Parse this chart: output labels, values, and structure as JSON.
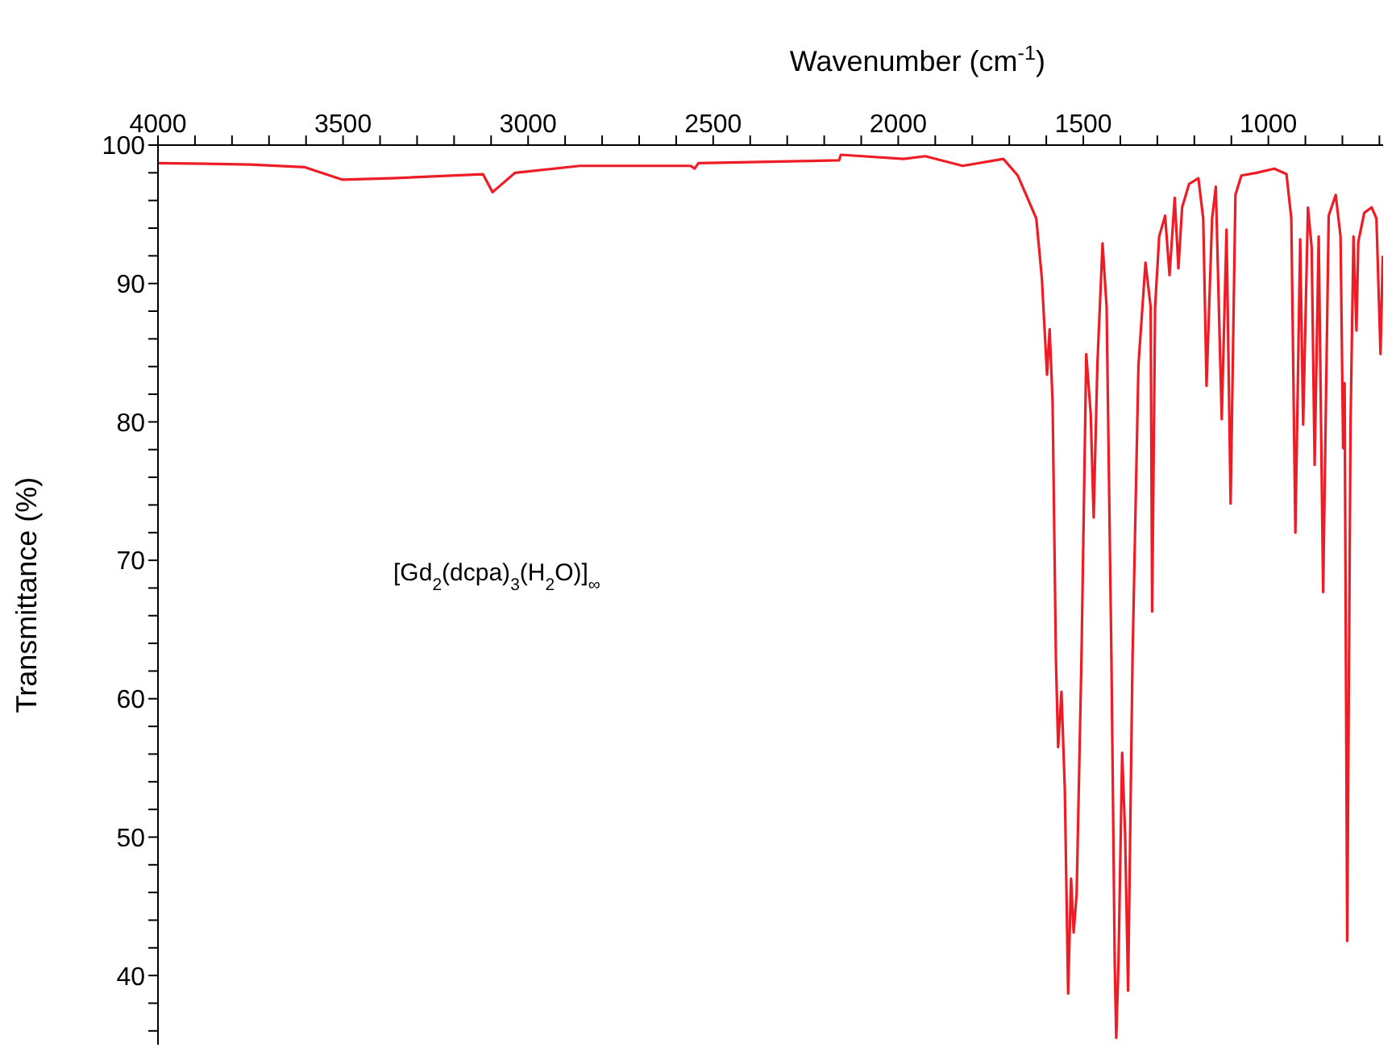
{
  "chart_data": {
    "type": "line",
    "xlabel": "Wavenumber (cm$^{-1}$)",
    "ylabel": "Transmittance (%)",
    "annotations": [
      "[Gd$_{2}$(dcpa)$_{3}$(H$_{2}$O)]$_{∞}$"
    ],
    "xlim": [
      4000,
      690
    ],
    "ylim": [
      35,
      100
    ],
    "xticks": [
      4000,
      {
        "value": 3900,
        "label": null
      },
      {
        "value": 3800,
        "label": null
      },
      {
        "value": 3700,
        "label": null
      },
      {
        "value": 3600,
        "label": null
      },
      3500,
      {
        "value": 3400,
        "label": null
      },
      {
        "value": 3300,
        "label": null
      },
      {
        "value": 3200,
        "label": null
      },
      {
        "value": 3100,
        "label": null
      },
      3000,
      {
        "value": 2900,
        "label": null
      },
      {
        "value": 2800,
        "label": null
      },
      {
        "value": 2700,
        "label": null
      },
      {
        "value": 2600,
        "label": null
      },
      2500,
      {
        "value": 2400,
        "label": null
      },
      {
        "value": 2300,
        "label": null
      },
      {
        "value": 2200,
        "label": null
      },
      {
        "value": 2100,
        "label": null
      },
      2000,
      {
        "value": 1900,
        "label": null
      },
      {
        "value": 1800,
        "label": null
      },
      {
        "value": 1700,
        "label": null
      },
      {
        "value": 1600,
        "label": null
      },
      1500,
      {
        "value": 1400,
        "label": null
      },
      {
        "value": 1300,
        "label": null
      },
      {
        "value": 1200,
        "label": null
      },
      {
        "value": 1100,
        "label": null
      },
      1000,
      {
        "value": 900,
        "label": null
      },
      {
        "value": 800,
        "label": null
      },
      {
        "value": 700,
        "label": null
      }
    ],
    "yticks": [
      {
        "value": 36,
        "label": null
      },
      {
        "value": 38,
        "label": null
      },
      40,
      {
        "value": 42,
        "label": null
      },
      {
        "value": 44,
        "label": null
      },
      {
        "value": 46,
        "label": null
      },
      {
        "value": 48,
        "label": null
      },
      50,
      {
        "value": 52,
        "label": null
      },
      {
        "value": 54,
        "label": null
      },
      {
        "value": 56,
        "label": null
      },
      {
        "value": 58,
        "label": null
      },
      60,
      {
        "value": 62,
        "label": null
      },
      {
        "value": 64,
        "label": null
      },
      {
        "value": 66,
        "label": null
      },
      {
        "value": 68,
        "label": null
      },
      70,
      {
        "value": 72,
        "label": null
      },
      {
        "value": 74,
        "label": null
      },
      {
        "value": 76,
        "label": null
      },
      {
        "value": 78,
        "label": null
      },
      80,
      {
        "value": 82,
        "label": null
      },
      {
        "value": 84,
        "label": null
      },
      {
        "value": 86,
        "label": null
      },
      {
        "value": 88,
        "label": null
      },
      90,
      {
        "value": 92,
        "label": null
      },
      {
        "value": 94,
        "label": null
      },
      {
        "value": 96,
        "label": null
      },
      {
        "value": 98,
        "label": null
      },
      100
    ],
    "grid": false,
    "legend": false,
    "line_style": "solid",
    "series": [
      {
        "color": "#ee1c25",
        "x": [
          4000,
          3750,
          3603,
          3501,
          3370,
          3122,
          3096,
          3035,
          2860,
          2561,
          2550,
          2540,
          2160,
          2155,
          1985,
          1927,
          1826,
          1716,
          1677,
          1627,
          1612,
          1598,
          1591,
          1583,
          1574,
          1568,
          1559,
          1550,
          1541,
          1533,
          1526,
          1518,
          1505,
          1492,
          1480,
          1472,
          1462,
          1448,
          1437,
          1424,
          1415,
          1411,
          1405,
          1395,
          1387,
          1379,
          1367,
          1351,
          1332,
          1318,
          1314,
          1306,
          1295,
          1279,
          1267,
          1253,
          1243,
          1233,
          1214,
          1189,
          1176,
          1167,
          1152,
          1142,
          1126,
          1113,
          1102,
          1089,
          1073,
          1032,
          984,
          951,
          938,
          927,
          914,
          906,
          893,
          883,
          875,
          864,
          852,
          837,
          818,
          805,
          798,
          794,
          787,
          778,
          770,
          762,
          757,
          741,
          721,
          708,
          697,
          691
        ],
        "values": [
          98.7,
          98.6,
          98.4,
          97.5,
          97.6,
          97.9,
          96.6,
          98.0,
          98.5,
          98.5,
          98.3,
          98.7,
          98.9,
          99.3,
          99.0,
          99.2,
          98.5,
          99.0,
          97.8,
          94.7,
          90.4,
          83.4,
          86.7,
          81.5,
          62.9,
          56.5,
          60.5,
          53.5,
          38.7,
          47.0,
          43.1,
          45.9,
          62.9,
          84.9,
          80.6,
          73.1,
          84.1,
          92.9,
          88.3,
          62.9,
          40.8,
          35.5,
          40.8,
          56.1,
          50.2,
          38.9,
          62.9,
          84.1,
          91.5,
          88.3,
          66.3,
          88.3,
          93.4,
          94.9,
          90.6,
          96.2,
          91.1,
          95.5,
          97.2,
          97.6,
          94.7,
          82.6,
          94.7,
          97.0,
          80.2,
          93.9,
          74.1,
          96.4,
          97.8,
          98.0,
          98.3,
          97.9,
          94.7,
          72.0,
          93.2,
          79.8,
          95.5,
          92.6,
          76.9,
          93.4,
          67.7,
          94.9,
          96.4,
          93.4,
          78.1,
          82.8,
          42.5,
          79.8,
          93.4,
          86.6,
          93.0,
          95.1,
          95.5,
          94.7,
          84.9,
          92.0
        ]
      }
    ]
  }
}
